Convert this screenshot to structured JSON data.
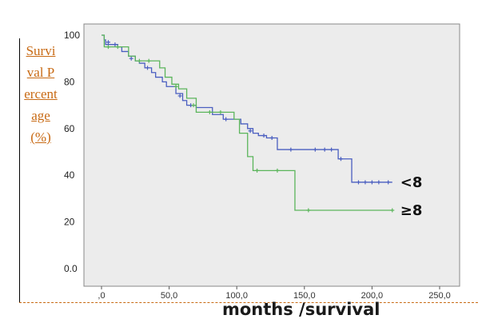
{
  "chart_data": {
    "type": "line",
    "step": true,
    "ylabel": "Survival Percentage (%)",
    "xlabel": "months /survival",
    "y_ticks": [
      "100",
      "80",
      "60",
      "40",
      "20",
      "0.0"
    ],
    "x_ticks": [
      ",0",
      "50,0",
      "100,0",
      "150,0",
      "200,0",
      "250,0"
    ],
    "xlim": [
      0,
      250
    ],
    "ylim": [
      0,
      100
    ],
    "series": [
      {
        "name": "<8",
        "color": "#4a5ec0",
        "points": [
          [
            0,
            100
          ],
          [
            2,
            98
          ],
          [
            3,
            96
          ],
          [
            8,
            96
          ],
          [
            12,
            95
          ],
          [
            15,
            93
          ],
          [
            20,
            91
          ],
          [
            25,
            89
          ],
          [
            28,
            88
          ],
          [
            32,
            86
          ],
          [
            37,
            84
          ],
          [
            40,
            82
          ],
          [
            45,
            80
          ],
          [
            48,
            78
          ],
          [
            55,
            75
          ],
          [
            60,
            72
          ],
          [
            63,
            70
          ],
          [
            70,
            69
          ],
          [
            82,
            66
          ],
          [
            90,
            64
          ],
          [
            100,
            64
          ],
          [
            103,
            62
          ],
          [
            108,
            60
          ],
          [
            112,
            58
          ],
          [
            116,
            57
          ],
          [
            122,
            56
          ],
          [
            130,
            51
          ],
          [
            148,
            51
          ],
          [
            172,
            51
          ],
          [
            175,
            47
          ],
          [
            182,
            47
          ],
          [
            185,
            37
          ],
          [
            205,
            37
          ],
          [
            215,
            37
          ]
        ],
        "censored": [
          [
            5,
            97
          ],
          [
            10,
            96
          ],
          [
            22,
            90
          ],
          [
            34,
            86
          ],
          [
            58,
            74
          ],
          [
            66,
            70
          ],
          [
            92,
            64
          ],
          [
            110,
            59
          ],
          [
            120,
            57
          ],
          [
            126,
            56
          ],
          [
            140,
            51
          ],
          [
            158,
            51
          ],
          [
            165,
            51
          ],
          [
            170,
            51
          ],
          [
            177,
            47
          ],
          [
            190,
            37
          ],
          [
            195,
            37
          ],
          [
            200,
            37
          ],
          [
            205,
            37
          ],
          [
            212,
            37
          ]
        ],
        "end_label": "<8"
      },
      {
        "name": "≥8",
        "color": "#5bb55b",
        "points": [
          [
            0,
            100
          ],
          [
            2,
            95
          ],
          [
            15,
            95
          ],
          [
            20,
            91
          ],
          [
            25,
            89
          ],
          [
            32,
            89
          ],
          [
            43,
            86
          ],
          [
            47,
            82
          ],
          [
            52,
            79
          ],
          [
            57,
            77
          ],
          [
            63,
            73
          ],
          [
            70,
            67
          ],
          [
            92,
            67
          ],
          [
            98,
            64
          ],
          [
            102,
            58
          ],
          [
            108,
            48
          ],
          [
            112,
            42
          ],
          [
            140,
            42
          ],
          [
            143,
            25
          ],
          [
            215,
            25
          ]
        ],
        "censored": [
          [
            5,
            95
          ],
          [
            12,
            95
          ],
          [
            28,
            89
          ],
          [
            35,
            89
          ],
          [
            55,
            78
          ],
          [
            68,
            70
          ],
          [
            80,
            67
          ],
          [
            88,
            67
          ],
          [
            115,
            42
          ],
          [
            130,
            42
          ],
          [
            153,
            25
          ],
          [
            215,
            25
          ]
        ],
        "end_label": "≥8"
      }
    ]
  }
}
